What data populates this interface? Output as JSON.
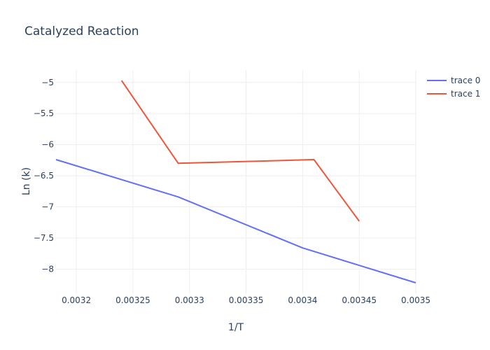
{
  "chart_data": {
    "type": "line",
    "title": "Catalyzed Reaction",
    "xlabel": "1/T",
    "ylabel": "Ln (k)",
    "xlim": [
      0.003182,
      0.0035
    ],
    "ylim": [
      -8.4,
      -4.8
    ],
    "xticks": [
      {
        "value": 0.0032,
        "label": "0.0032"
      },
      {
        "value": 0.00325,
        "label": "0.00325"
      },
      {
        "value": 0.0033,
        "label": "0.0033"
      },
      {
        "value": 0.00335,
        "label": "0.00335"
      },
      {
        "value": 0.0034,
        "label": "0.0034"
      },
      {
        "value": 0.00345,
        "label": "0.00345"
      },
      {
        "value": 0.0035,
        "label": "0.0035"
      }
    ],
    "yticks": [
      {
        "value": -5,
        "label": "−5"
      },
      {
        "value": -5.5,
        "label": "−5.5"
      },
      {
        "value": -6,
        "label": "−6"
      },
      {
        "value": -6.5,
        "label": "−6.5"
      },
      {
        "value": -7,
        "label": "−7"
      },
      {
        "value": -7.5,
        "label": "−7.5"
      },
      {
        "value": -8,
        "label": "−8"
      }
    ],
    "grid": true,
    "legend_position": "top-right",
    "series": [
      {
        "name": "trace 0",
        "color": "#636efa",
        "x": [
          0.003182,
          0.00329,
          0.0034,
          0.0035
        ],
        "y": [
          -6.24,
          -6.84,
          -7.66,
          -8.22
        ]
      },
      {
        "name": "trace 1",
        "color": "#ef553b",
        "x": [
          0.00324,
          0.00329,
          0.00341,
          0.00345
        ],
        "y": [
          -4.97,
          -6.3,
          -6.24,
          -7.23
        ]
      }
    ]
  }
}
